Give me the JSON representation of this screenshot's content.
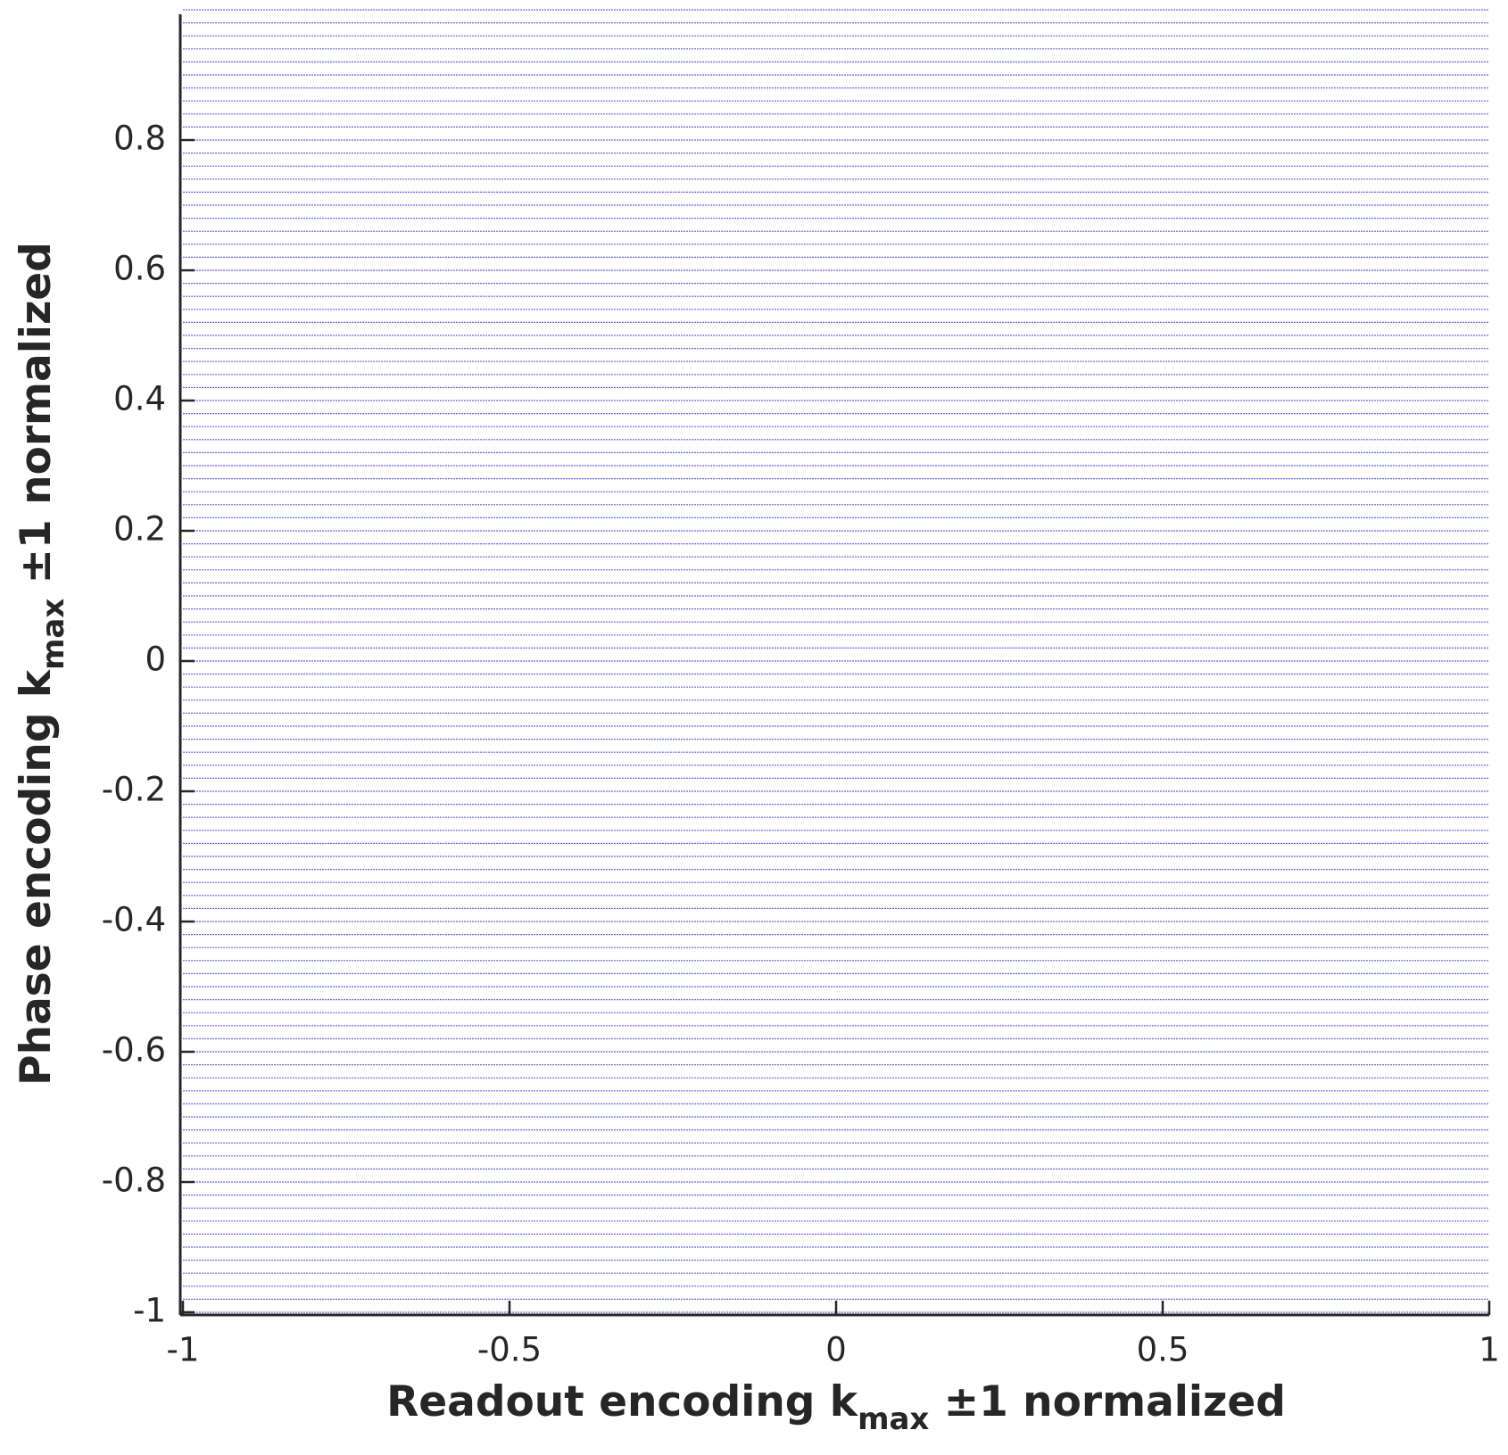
{
  "chart_data": {
    "type": "hlines",
    "xlabel": {
      "main": "Readout encoding k",
      "sub": "max",
      "rest": " ±1 normalized"
    },
    "ylabel": {
      "main": "Phase encoding k",
      "sub": "max",
      "rest": " ±1 normalized"
    },
    "x": [
      -1,
      1
    ],
    "color": "#2a2ad0",
    "lines": [
      -1,
      -0.98,
      -0.96,
      -0.94,
      -0.92,
      -0.9,
      -0.88,
      -0.86,
      -0.84,
      -0.82,
      -0.8,
      -0.78,
      -0.76,
      -0.74,
      -0.72,
      -0.7,
      -0.68,
      -0.66,
      -0.64,
      -0.62,
      -0.6,
      -0.58,
      -0.56,
      -0.54,
      -0.52,
      -0.5,
      -0.48,
      -0.46,
      -0.44,
      -0.42,
      -0.4,
      -0.38,
      -0.36,
      -0.34,
      -0.32,
      -0.3,
      -0.28,
      -0.26,
      -0.24,
      -0.22,
      -0.2,
      -0.18,
      -0.16,
      -0.14,
      -0.12,
      -0.1,
      -0.08,
      -0.06,
      -0.04,
      -0.02,
      0,
      0.02,
      0.04,
      0.06,
      0.08,
      0.1,
      0.12,
      0.14,
      0.16,
      0.18,
      0.2,
      0.22,
      0.24,
      0.26,
      0.28,
      0.3,
      0.32,
      0.34,
      0.36,
      0.38,
      0.4,
      0.42,
      0.44,
      0.46,
      0.48,
      0.5,
      0.52,
      0.54,
      0.56,
      0.58,
      0.6,
      0.62,
      0.64,
      0.66,
      0.68,
      0.7,
      0.72,
      0.74,
      0.76,
      0.78,
      0.8,
      0.82,
      0.84,
      0.86,
      0.88,
      0.9,
      0.92,
      0.94,
      0.96,
      0.98,
      1
    ],
    "xlim": [
      -1,
      1
    ],
    "ylim": [
      -1,
      1
    ],
    "xticks": [
      -1,
      -0.5,
      0,
      0.5,
      1
    ],
    "yticks": [
      -1,
      -0.8,
      -0.6,
      -0.4,
      -0.2,
      0,
      0.2,
      0.4,
      0.6,
      0.8
    ]
  }
}
